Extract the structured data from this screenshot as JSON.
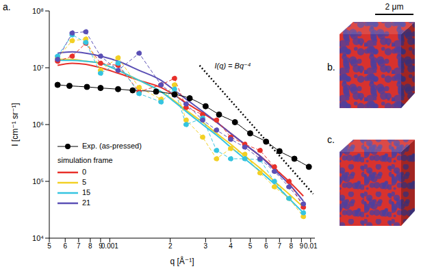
{
  "chart_data": {
    "type": "line",
    "panel": "a.",
    "x_label": "q [Å⁻¹]",
    "y_label": "I [cm⁻¹ sr⁻¹]",
    "log": true,
    "grid": false,
    "legend": "lower left",
    "legend_title": "simulation frame",
    "xlim": [
      0.0005,
      0.0105
    ],
    "ylim": [
      10000,
      100000000
    ],
    "xticks": [
      {
        "value": 0.0005,
        "label": "5"
      },
      {
        "value": 0.0006,
        "label": "6"
      },
      {
        "value": 0.0007,
        "label": "7"
      },
      {
        "value": 0.0008,
        "label": "8"
      },
      {
        "value": 0.0009,
        "label": "9"
      },
      0.001,
      {
        "value": 0.002,
        "label": "2"
      },
      {
        "value": 0.003,
        "label": "3"
      },
      {
        "value": 0.004,
        "label": "4"
      },
      {
        "value": 0.005,
        "label": "5"
      },
      {
        "value": 0.006,
        "label": "6"
      },
      {
        "value": 0.007,
        "label": "7"
      },
      {
        "value": 0.008,
        "label": "8"
      },
      {
        "value": 0.009,
        "label": "9"
      },
      0.01
    ],
    "yticks": [
      {
        "value": 10000,
        "label": "10⁴"
      },
      {
        "value": 100000,
        "label": "10⁵"
      },
      {
        "value": 1000000,
        "label": "10⁶"
      },
      {
        "value": 10000000,
        "label": "10⁷"
      },
      {
        "value": 100000000,
        "label": "10⁸"
      }
    ],
    "series": [
      {
        "name": "Exp. (as-pressed)",
        "color": "#000000",
        "marker": "circle",
        "line_style": "solid",
        "x": [
          0.00055,
          0.00063,
          0.00077,
          0.0009,
          0.0011,
          0.0013,
          0.0017,
          0.0021,
          0.0025,
          0.003,
          0.0035,
          0.0042,
          0.005,
          0.006,
          0.007,
          0.0083,
          0.0098
        ],
        "values": [
          5000000,
          4800000,
          4600000,
          4400000,
          4200000,
          4000000,
          3800000,
          3400000,
          2900000,
          2100000,
          1500000,
          1100000,
          700000,
          500000,
          340000,
          250000,
          180000
        ]
      },
      {
        "name": "0",
        "color": "#e8302a",
        "marker": "circle",
        "line_style": "dashed",
        "x": [
          0.00055,
          0.00065,
          0.00076,
          0.0009,
          0.0011,
          0.0014,
          0.0018,
          0.0021,
          0.0024,
          0.0029,
          0.0034,
          0.004,
          0.0047,
          0.0056,
          0.0066,
          0.0078,
          0.0092
        ],
        "values": [
          13000000,
          16000000,
          27000000,
          12000000,
          11000000,
          3800000,
          5000000,
          6500000,
          2000000,
          1500000,
          1200000,
          600000,
          450000,
          350000,
          180000,
          100000,
          35000
        ],
        "fit": [
          11000000,
          12000000,
          11500000,
          10000000,
          8000000,
          6000000,
          4500000,
          3300000,
          2400000,
          1600000,
          1100000,
          700000,
          450000,
          280000,
          170000,
          100000,
          55000
        ]
      },
      {
        "name": "5",
        "color": "#f2d024",
        "marker": "circle",
        "line_style": "dashed",
        "x": [
          0.00055,
          0.00065,
          0.00076,
          0.0009,
          0.0011,
          0.0014,
          0.0018,
          0.0021,
          0.0024,
          0.0029,
          0.0034,
          0.004,
          0.0047,
          0.0056,
          0.0066,
          0.0078,
          0.0092
        ],
        "values": [
          15000000,
          30000000,
          32000000,
          9000000,
          15000000,
          4500000,
          2800000,
          5000000,
          1200000,
          600000,
          250000,
          380000,
          300000,
          140000,
          80000,
          50000,
          24000
        ],
        "fit": [
          14000000,
          14000000,
          13000000,
          12000000,
          9000000,
          6000000,
          3800000,
          2600000,
          1800000,
          1100000,
          700000,
          450000,
          280000,
          170000,
          100000,
          60000,
          35000
        ]
      },
      {
        "name": "15",
        "color": "#35c4e0",
        "marker": "circle",
        "line_style": "dashed",
        "x": [
          0.00055,
          0.00065,
          0.00076,
          0.0009,
          0.0011,
          0.0014,
          0.0018,
          0.0021,
          0.0024,
          0.0029,
          0.0034,
          0.004,
          0.0047,
          0.0056,
          0.0066,
          0.0078,
          0.0092
        ],
        "values": [
          16000000,
          38000000,
          28000000,
          8000000,
          12000000,
          3500000,
          2500000,
          4200000,
          1000000,
          1300000,
          350000,
          250000,
          250000,
          240000,
          100000,
          50000,
          28000
        ],
        "fit": [
          13500000,
          13500000,
          13000000,
          12000000,
          9000000,
          6000000,
          3800000,
          2500000,
          1700000,
          1000000,
          650000,
          400000,
          250000,
          150000,
          90000,
          50000,
          28000
        ]
      },
      {
        "name": "21",
        "color": "#5a4fb5",
        "marker": "circle",
        "line_style": "dashed",
        "x": [
          0.00055,
          0.00065,
          0.00076,
          0.0009,
          0.0011,
          0.0014,
          0.0018,
          0.0021,
          0.0024,
          0.0029,
          0.0034,
          0.004,
          0.0047,
          0.0056,
          0.0066,
          0.0078,
          0.0092
        ],
        "values": [
          14000000,
          41000000,
          43000000,
          16000000,
          9000000,
          18000000,
          5000000,
          3300000,
          2300000,
          1200000,
          800000,
          550000,
          400000,
          250000,
          150000,
          80000,
          40000
        ],
        "fit": [
          18000000,
          19000000,
          18000000,
          16000000,
          13000000,
          9000000,
          6000000,
          4000000,
          2800000,
          1700000,
          1100000,
          700000,
          450000,
          280000,
          160000,
          90000,
          45000
        ]
      }
    ],
    "annotations": [
      {
        "text": "I(q) = Bq⁻⁴",
        "color": "#000000",
        "line_style": "dotted",
        "x": [
          0.0028,
          0.0103
        ],
        "values": [
          11000000,
          60000
        ]
      }
    ]
  },
  "images": {
    "panels": [
      {
        "label": "b."
      },
      {
        "label": "c."
      }
    ],
    "scale_bar": "2 μm"
  }
}
